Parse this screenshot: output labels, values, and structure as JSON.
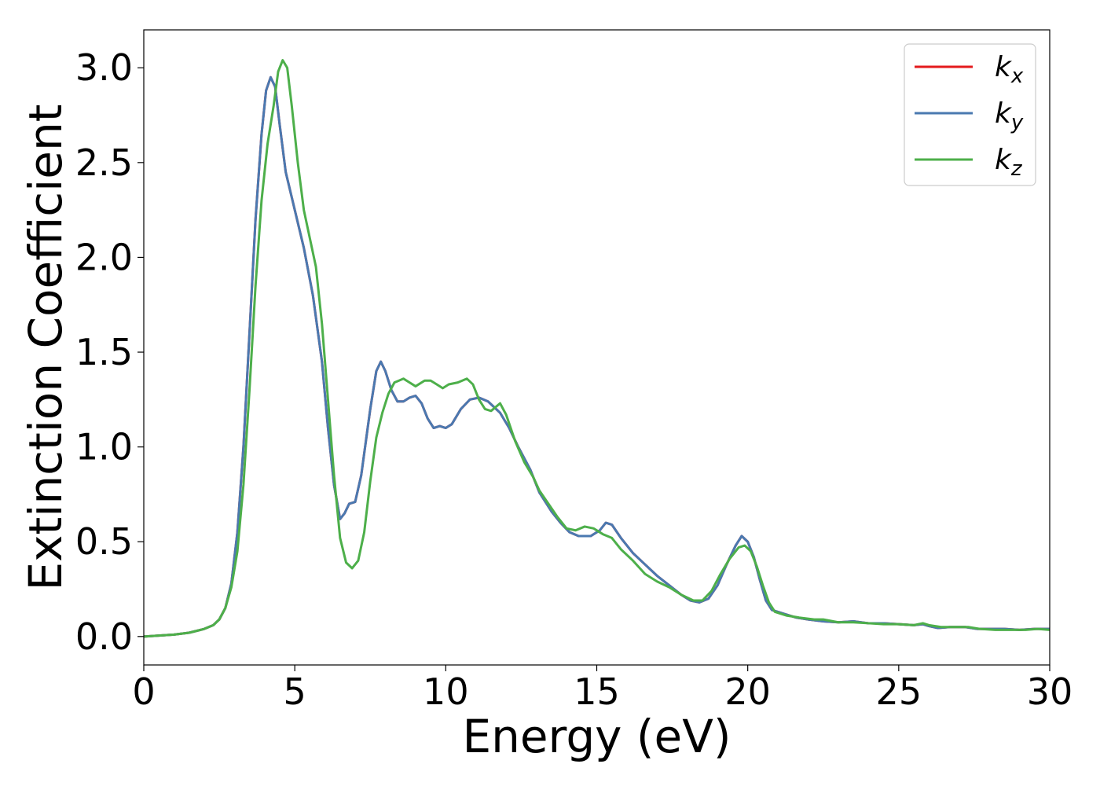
{
  "chart_data": {
    "type": "line",
    "title": "",
    "xlabel": "Energy (eV)",
    "ylabel": "Extinction Coefficient",
    "xlim": [
      0,
      30
    ],
    "ylim": [
      -0.15,
      3.2
    ],
    "xticks": [
      0,
      5,
      10,
      15,
      20,
      25,
      30
    ],
    "yticks": [
      0.0,
      0.5,
      1.0,
      1.5,
      2.0,
      2.5,
      3.0
    ],
    "xtick_labels": [
      "0",
      "5",
      "10",
      "15",
      "20",
      "25",
      "30"
    ],
    "ytick_labels": [
      "0.0",
      "0.5",
      "1.0",
      "1.5",
      "2.0",
      "2.5",
      "3.0"
    ],
    "grid": false,
    "legend_position": "top-right",
    "series": [
      {
        "name": "k_x",
        "label_main": "k",
        "label_sub": "x",
        "color": "#e41a1c",
        "points": [
          [
            0,
            0
          ],
          [
            1,
            0.01
          ],
          [
            1.5,
            0.02
          ],
          [
            2,
            0.04
          ],
          [
            2.3,
            0.06
          ],
          [
            2.5,
            0.09
          ],
          [
            2.7,
            0.15
          ],
          [
            2.9,
            0.28
          ],
          [
            3.1,
            0.55
          ],
          [
            3.3,
            1.0
          ],
          [
            3.5,
            1.6
          ],
          [
            3.7,
            2.2
          ],
          [
            3.9,
            2.65
          ],
          [
            4.05,
            2.88
          ],
          [
            4.2,
            2.95
          ],
          [
            4.35,
            2.9
          ],
          [
            4.5,
            2.7
          ],
          [
            4.7,
            2.45
          ],
          [
            5,
            2.25
          ],
          [
            5.3,
            2.05
          ],
          [
            5.6,
            1.8
          ],
          [
            5.9,
            1.45
          ],
          [
            6.1,
            1.1
          ],
          [
            6.3,
            0.8
          ],
          [
            6.5,
            0.62
          ],
          [
            6.65,
            0.65
          ],
          [
            6.8,
            0.7
          ],
          [
            7.0,
            0.71
          ],
          [
            7.2,
            0.85
          ],
          [
            7.5,
            1.2
          ],
          [
            7.7,
            1.4
          ],
          [
            7.85,
            1.45
          ],
          [
            8.0,
            1.4
          ],
          [
            8.2,
            1.3
          ],
          [
            8.4,
            1.24
          ],
          [
            8.6,
            1.24
          ],
          [
            8.8,
            1.26
          ],
          [
            9.0,
            1.27
          ],
          [
            9.2,
            1.23
          ],
          [
            9.4,
            1.15
          ],
          [
            9.6,
            1.1
          ],
          [
            9.8,
            1.11
          ],
          [
            10.0,
            1.1
          ],
          [
            10.2,
            1.12
          ],
          [
            10.5,
            1.2
          ],
          [
            10.8,
            1.25
          ],
          [
            11.1,
            1.26
          ],
          [
            11.4,
            1.24
          ],
          [
            11.8,
            1.18
          ],
          [
            12.1,
            1.1
          ],
          [
            12.4,
            1.0
          ],
          [
            12.8,
            0.88
          ],
          [
            13.1,
            0.76
          ],
          [
            13.5,
            0.66
          ],
          [
            13.8,
            0.6
          ],
          [
            14.1,
            0.55
          ],
          [
            14.4,
            0.53
          ],
          [
            14.8,
            0.53
          ],
          [
            15.1,
            0.56
          ],
          [
            15.3,
            0.6
          ],
          [
            15.5,
            0.59
          ],
          [
            15.8,
            0.52
          ],
          [
            16.2,
            0.44
          ],
          [
            16.6,
            0.38
          ],
          [
            17.0,
            0.32
          ],
          [
            17.4,
            0.27
          ],
          [
            17.8,
            0.22
          ],
          [
            18.1,
            0.19
          ],
          [
            18.4,
            0.18
          ],
          [
            18.7,
            0.2
          ],
          [
            19.0,
            0.27
          ],
          [
            19.3,
            0.38
          ],
          [
            19.6,
            0.48
          ],
          [
            19.8,
            0.53
          ],
          [
            20.0,
            0.5
          ],
          [
            20.2,
            0.42
          ],
          [
            20.4,
            0.3
          ],
          [
            20.6,
            0.19
          ],
          [
            20.8,
            0.14
          ],
          [
            21.2,
            0.12
          ],
          [
            21.6,
            0.1
          ],
          [
            22,
            0.09
          ],
          [
            22.5,
            0.08
          ],
          [
            23,
            0.075
          ],
          [
            23.5,
            0.08
          ],
          [
            24,
            0.07
          ],
          [
            24.5,
            0.07
          ],
          [
            25,
            0.065
          ],
          [
            25.5,
            0.06
          ],
          [
            25.8,
            0.065
          ],
          [
            26,
            0.055
          ],
          [
            26.3,
            0.045
          ],
          [
            26.7,
            0.05
          ],
          [
            27.2,
            0.05
          ],
          [
            27.6,
            0.04
          ],
          [
            28,
            0.04
          ],
          [
            28.5,
            0.04
          ],
          [
            29,
            0.035
          ],
          [
            29.5,
            0.04
          ],
          [
            30,
            0.04
          ]
        ]
      },
      {
        "name": "k_y",
        "label_main": "k",
        "label_sub": "y",
        "color": "#4a79b0",
        "points": [
          [
            0,
            0
          ],
          [
            1,
            0.01
          ],
          [
            1.5,
            0.02
          ],
          [
            2,
            0.04
          ],
          [
            2.3,
            0.06
          ],
          [
            2.5,
            0.09
          ],
          [
            2.7,
            0.15
          ],
          [
            2.9,
            0.28
          ],
          [
            3.1,
            0.55
          ],
          [
            3.3,
            1.0
          ],
          [
            3.5,
            1.6
          ],
          [
            3.7,
            2.2
          ],
          [
            3.9,
            2.65
          ],
          [
            4.05,
            2.88
          ],
          [
            4.2,
            2.95
          ],
          [
            4.35,
            2.9
          ],
          [
            4.5,
            2.7
          ],
          [
            4.7,
            2.45
          ],
          [
            5,
            2.25
          ],
          [
            5.3,
            2.05
          ],
          [
            5.6,
            1.8
          ],
          [
            5.9,
            1.45
          ],
          [
            6.1,
            1.1
          ],
          [
            6.3,
            0.8
          ],
          [
            6.5,
            0.62
          ],
          [
            6.65,
            0.65
          ],
          [
            6.8,
            0.7
          ],
          [
            7.0,
            0.71
          ],
          [
            7.2,
            0.85
          ],
          [
            7.5,
            1.2
          ],
          [
            7.7,
            1.4
          ],
          [
            7.85,
            1.45
          ],
          [
            8.0,
            1.4
          ],
          [
            8.2,
            1.3
          ],
          [
            8.4,
            1.24
          ],
          [
            8.6,
            1.24
          ],
          [
            8.8,
            1.26
          ],
          [
            9.0,
            1.27
          ],
          [
            9.2,
            1.23
          ],
          [
            9.4,
            1.15
          ],
          [
            9.6,
            1.1
          ],
          [
            9.8,
            1.11
          ],
          [
            10.0,
            1.1
          ],
          [
            10.2,
            1.12
          ],
          [
            10.5,
            1.2
          ],
          [
            10.8,
            1.25
          ],
          [
            11.1,
            1.26
          ],
          [
            11.4,
            1.24
          ],
          [
            11.8,
            1.18
          ],
          [
            12.1,
            1.1
          ],
          [
            12.4,
            1.0
          ],
          [
            12.8,
            0.88
          ],
          [
            13.1,
            0.76
          ],
          [
            13.5,
            0.66
          ],
          [
            13.8,
            0.6
          ],
          [
            14.1,
            0.55
          ],
          [
            14.4,
            0.53
          ],
          [
            14.8,
            0.53
          ],
          [
            15.1,
            0.56
          ],
          [
            15.3,
            0.6
          ],
          [
            15.5,
            0.59
          ],
          [
            15.8,
            0.52
          ],
          [
            16.2,
            0.44
          ],
          [
            16.6,
            0.38
          ],
          [
            17.0,
            0.32
          ],
          [
            17.4,
            0.27
          ],
          [
            17.8,
            0.22
          ],
          [
            18.1,
            0.19
          ],
          [
            18.4,
            0.18
          ],
          [
            18.7,
            0.2
          ],
          [
            19.0,
            0.27
          ],
          [
            19.3,
            0.38
          ],
          [
            19.6,
            0.48
          ],
          [
            19.8,
            0.53
          ],
          [
            20.0,
            0.5
          ],
          [
            20.2,
            0.42
          ],
          [
            20.4,
            0.3
          ],
          [
            20.6,
            0.19
          ],
          [
            20.8,
            0.14
          ],
          [
            21.2,
            0.12
          ],
          [
            21.6,
            0.1
          ],
          [
            22,
            0.09
          ],
          [
            22.5,
            0.08
          ],
          [
            23,
            0.075
          ],
          [
            23.5,
            0.08
          ],
          [
            24,
            0.07
          ],
          [
            24.5,
            0.07
          ],
          [
            25,
            0.065
          ],
          [
            25.5,
            0.06
          ],
          [
            25.8,
            0.065
          ],
          [
            26,
            0.055
          ],
          [
            26.3,
            0.045
          ],
          [
            26.7,
            0.05
          ],
          [
            27.2,
            0.05
          ],
          [
            27.6,
            0.04
          ],
          [
            28,
            0.04
          ],
          [
            28.5,
            0.04
          ],
          [
            29,
            0.035
          ],
          [
            29.5,
            0.04
          ],
          [
            30,
            0.04
          ]
        ]
      },
      {
        "name": "k_z",
        "label_main": "k",
        "label_sub": "z",
        "color": "#4daf4a",
        "points": [
          [
            0,
            0
          ],
          [
            1,
            0.01
          ],
          [
            1.5,
            0.02
          ],
          [
            2,
            0.04
          ],
          [
            2.3,
            0.06
          ],
          [
            2.5,
            0.09
          ],
          [
            2.7,
            0.15
          ],
          [
            2.9,
            0.26
          ],
          [
            3.1,
            0.45
          ],
          [
            3.3,
            0.8
          ],
          [
            3.5,
            1.3
          ],
          [
            3.7,
            1.85
          ],
          [
            3.9,
            2.3
          ],
          [
            4.1,
            2.6
          ],
          [
            4.3,
            2.8
          ],
          [
            4.45,
            2.98
          ],
          [
            4.6,
            3.04
          ],
          [
            4.75,
            3.0
          ],
          [
            4.9,
            2.8
          ],
          [
            5.1,
            2.5
          ],
          [
            5.3,
            2.25
          ],
          [
            5.5,
            2.1
          ],
          [
            5.7,
            1.95
          ],
          [
            5.9,
            1.65
          ],
          [
            6.1,
            1.25
          ],
          [
            6.3,
            0.85
          ],
          [
            6.5,
            0.52
          ],
          [
            6.7,
            0.39
          ],
          [
            6.9,
            0.36
          ],
          [
            7.1,
            0.4
          ],
          [
            7.3,
            0.55
          ],
          [
            7.5,
            0.82
          ],
          [
            7.7,
            1.05
          ],
          [
            7.9,
            1.18
          ],
          [
            8.1,
            1.28
          ],
          [
            8.3,
            1.34
          ],
          [
            8.6,
            1.36
          ],
          [
            8.8,
            1.34
          ],
          [
            9.0,
            1.32
          ],
          [
            9.3,
            1.35
          ],
          [
            9.5,
            1.35
          ],
          [
            9.7,
            1.33
          ],
          [
            9.9,
            1.31
          ],
          [
            10.1,
            1.33
          ],
          [
            10.4,
            1.34
          ],
          [
            10.7,
            1.36
          ],
          [
            10.9,
            1.33
          ],
          [
            11.1,
            1.25
          ],
          [
            11.3,
            1.2
          ],
          [
            11.5,
            1.19
          ],
          [
            11.8,
            1.23
          ],
          [
            12.0,
            1.17
          ],
          [
            12.3,
            1.03
          ],
          [
            12.6,
            0.92
          ],
          [
            12.9,
            0.84
          ],
          [
            13.1,
            0.77
          ],
          [
            13.4,
            0.7
          ],
          [
            13.7,
            0.63
          ],
          [
            14.0,
            0.57
          ],
          [
            14.3,
            0.56
          ],
          [
            14.6,
            0.58
          ],
          [
            14.9,
            0.57
          ],
          [
            15.2,
            0.54
          ],
          [
            15.5,
            0.52
          ],
          [
            15.8,
            0.46
          ],
          [
            16.2,
            0.4
          ],
          [
            16.6,
            0.33
          ],
          [
            17.0,
            0.29
          ],
          [
            17.4,
            0.26
          ],
          [
            17.8,
            0.22
          ],
          [
            18.2,
            0.19
          ],
          [
            18.5,
            0.19
          ],
          [
            18.8,
            0.24
          ],
          [
            19.1,
            0.33
          ],
          [
            19.4,
            0.41
          ],
          [
            19.7,
            0.47
          ],
          [
            19.9,
            0.48
          ],
          [
            20.1,
            0.45
          ],
          [
            20.3,
            0.37
          ],
          [
            20.5,
            0.27
          ],
          [
            20.7,
            0.18
          ],
          [
            20.9,
            0.13
          ],
          [
            21.3,
            0.11
          ],
          [
            21.7,
            0.1
          ],
          [
            22.2,
            0.09
          ],
          [
            22.5,
            0.09
          ],
          [
            23,
            0.075
          ],
          [
            23.5,
            0.075
          ],
          [
            24,
            0.07
          ],
          [
            24.5,
            0.065
          ],
          [
            25,
            0.065
          ],
          [
            25.5,
            0.06
          ],
          [
            25.8,
            0.07
          ],
          [
            26,
            0.06
          ],
          [
            26.4,
            0.05
          ],
          [
            26.8,
            0.05
          ],
          [
            27.3,
            0.05
          ],
          [
            27.7,
            0.04
          ],
          [
            28.2,
            0.035
          ],
          [
            28.7,
            0.035
          ],
          [
            29.2,
            0.035
          ],
          [
            29.6,
            0.04
          ],
          [
            30,
            0.035
          ]
        ]
      }
    ]
  }
}
